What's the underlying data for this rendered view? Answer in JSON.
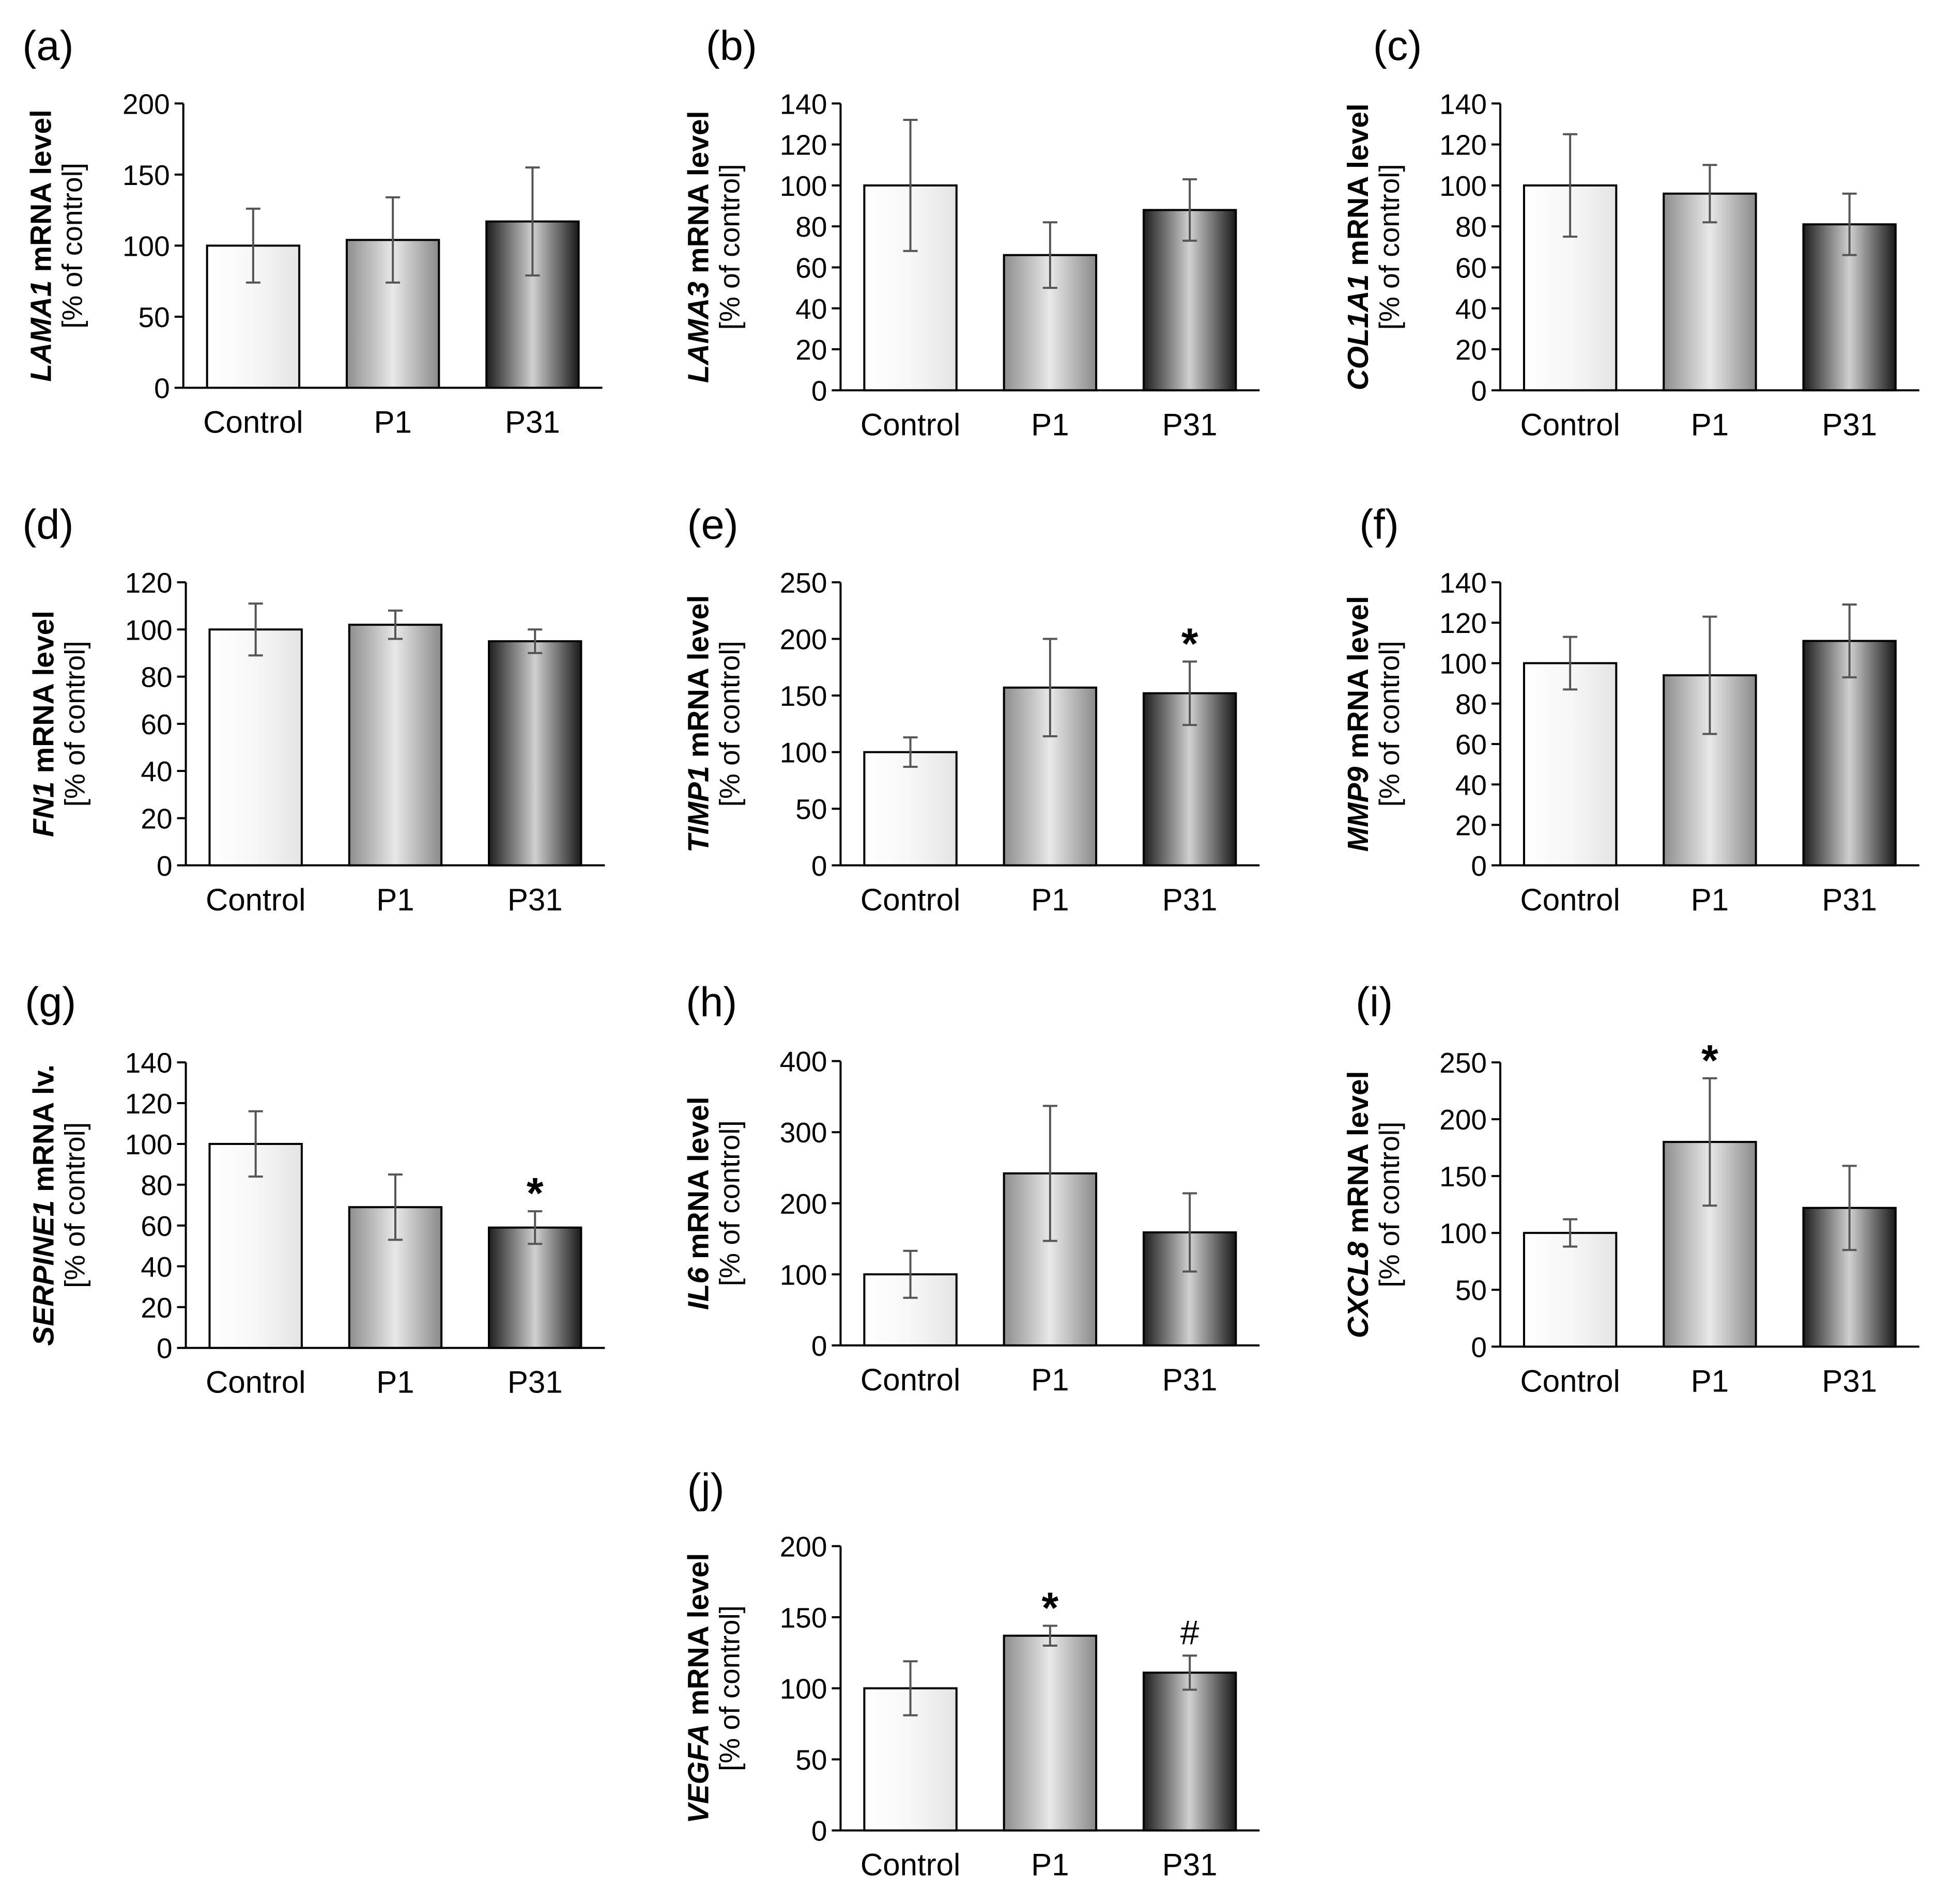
{
  "figure": {
    "categories": [
      "Control",
      "P1",
      "P31"
    ]
  },
  "chart_data": [
    {
      "panel": "(a)",
      "type": "bar",
      "gene": "LAMA1",
      "ylabel_main": " mRNA level",
      "ylabel_sub": "[% of control]",
      "categories": [
        "Control",
        "P1",
        "P31"
      ],
      "values": [
        100,
        104,
        117
      ],
      "errors": [
        26,
        30,
        38
      ],
      "ylim": [
        0,
        200
      ],
      "ticks": [
        0,
        50,
        100,
        150,
        200
      ],
      "marks": [
        "",
        "",
        ""
      ]
    },
    {
      "panel": "(b)",
      "type": "bar",
      "gene": "LAMA3",
      "ylabel_main": " mRNA level",
      "ylabel_sub": "[% of control]",
      "categories": [
        "Control",
        "P1",
        "P31"
      ],
      "values": [
        100,
        66,
        88
      ],
      "errors": [
        32,
        16,
        15
      ],
      "ylim": [
        0,
        140
      ],
      "ticks": [
        0,
        20,
        40,
        60,
        80,
        100,
        120,
        140
      ],
      "marks": [
        "",
        "",
        ""
      ]
    },
    {
      "panel": "(c)",
      "type": "bar",
      "gene": "COL1A1",
      "ylabel_main": " mRNA level",
      "ylabel_sub": "[% of control]",
      "categories": [
        "Control",
        "P1",
        "P31"
      ],
      "values": [
        100,
        96,
        81
      ],
      "errors": [
        25,
        14,
        15
      ],
      "ylim": [
        0,
        140
      ],
      "ticks": [
        0,
        20,
        40,
        60,
        80,
        100,
        120,
        140
      ],
      "marks": [
        "",
        "",
        ""
      ]
    },
    {
      "panel": "(d)",
      "type": "bar",
      "gene": "FN1",
      "ylabel_main": " mRNA level",
      "ylabel_sub": "[% of control]",
      "categories": [
        "Control",
        "P1",
        "P31"
      ],
      "values": [
        100,
        102,
        95
      ],
      "errors": [
        11,
        6,
        5
      ],
      "ylim": [
        0,
        120
      ],
      "ticks": [
        0,
        20,
        40,
        60,
        80,
        100,
        120
      ],
      "marks": [
        "",
        "",
        ""
      ]
    },
    {
      "panel": "(e)",
      "type": "bar",
      "gene": "TIMP1",
      "ylabel_main": " mRNA level",
      "ylabel_sub": "[% of control]",
      "categories": [
        "Control",
        "P1",
        "P31"
      ],
      "values": [
        100,
        157,
        152
      ],
      "errors": [
        13,
        43,
        28
      ],
      "ylim": [
        0,
        250
      ],
      "ticks": [
        0,
        50,
        100,
        150,
        200,
        250
      ],
      "marks": [
        "",
        "",
        "*"
      ]
    },
    {
      "panel": "(f)",
      "type": "bar",
      "gene": "MMP9",
      "ylabel_main": " mRNA level",
      "ylabel_sub": "[% of control]",
      "categories": [
        "Control",
        "P1",
        "P31"
      ],
      "values": [
        100,
        94,
        111
      ],
      "errors": [
        13,
        29,
        18
      ],
      "ylim": [
        0,
        140
      ],
      "ticks": [
        0,
        20,
        40,
        60,
        80,
        100,
        120,
        140
      ],
      "marks": [
        "",
        "",
        ""
      ]
    },
    {
      "panel": "(g)",
      "type": "bar",
      "gene": "SERPINE1",
      "ylabel_main": " mRNA lv.",
      "ylabel_sub": "[% of control]",
      "categories": [
        "Control",
        "P1",
        "P31"
      ],
      "values": [
        100,
        69,
        59
      ],
      "errors": [
        16,
        16,
        8
      ],
      "ylim": [
        0,
        140
      ],
      "ticks": [
        0,
        20,
        40,
        60,
        80,
        100,
        120,
        140
      ],
      "marks": [
        "",
        "",
        "*"
      ]
    },
    {
      "panel": "(h)",
      "type": "bar",
      "gene": "IL6",
      "ylabel_main": " mRNA level",
      "ylabel_sub": "[% of control]",
      "categories": [
        "Control",
        "P1",
        "P31"
      ],
      "values": [
        100,
        242,
        159
      ],
      "errors": [
        33,
        95,
        55
      ],
      "ylim": [
        0,
        400
      ],
      "ticks": [
        0,
        100,
        200,
        300,
        400
      ],
      "marks": [
        "",
        "",
        ""
      ]
    },
    {
      "panel": "(i)",
      "type": "bar",
      "gene": "CXCL8",
      "ylabel_main": " mRNA level",
      "ylabel_sub": "[% of control]",
      "categories": [
        "Control",
        "P1",
        "P31"
      ],
      "values": [
        100,
        180,
        122
      ],
      "errors": [
        12,
        56,
        37
      ],
      "ylim": [
        0,
        250
      ],
      "ticks": [
        0,
        50,
        100,
        150,
        200,
        250
      ],
      "marks": [
        "",
        "*",
        ""
      ]
    },
    {
      "panel": "(j)",
      "type": "bar",
      "gene": "VEGFA",
      "ylabel_main": " mRNA level",
      "ylabel_sub": "[% of control]",
      "categories": [
        "Control",
        "P1",
        "P31"
      ],
      "values": [
        100,
        137,
        111
      ],
      "errors": [
        19,
        7,
        12
      ],
      "ylim": [
        0,
        200
      ],
      "ticks": [
        0,
        50,
        100,
        150,
        200
      ],
      "marks": [
        "",
        "*",
        "#"
      ]
    }
  ]
}
